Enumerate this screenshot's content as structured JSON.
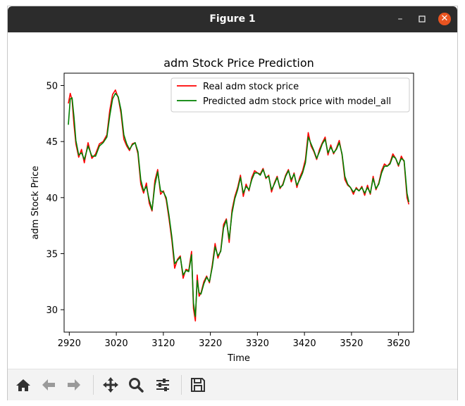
{
  "window": {
    "title": "Figure 1"
  },
  "toolbar": {
    "buttons": [
      {
        "name": "home-icon"
      },
      {
        "name": "back-arrow-icon"
      },
      {
        "name": "forward-arrow-icon"
      },
      {
        "name": "pan-move-icon"
      },
      {
        "name": "zoom-magnifier-icon"
      },
      {
        "name": "configure-subplots-icon"
      },
      {
        "name": "save-disk-icon"
      }
    ]
  },
  "chart_data": {
    "type": "line",
    "title": "adm Stock Price Prediction",
    "xlabel": "Time",
    "ylabel": "adm Stock Price",
    "xlim": [
      2909,
      3652
    ],
    "ylim": [
      28,
      51.1
    ],
    "xticks": [
      2920,
      3020,
      3120,
      3220,
      3320,
      3420,
      3520,
      3620
    ],
    "yticks": [
      30,
      35,
      40,
      45,
      50
    ],
    "grid": false,
    "legend_position": "top-right",
    "series": [
      {
        "name": "Real adm stock price",
        "color": "#ff0000",
        "x": [
          2918,
          2922,
          2926,
          2930,
          2934,
          2940,
          2946,
          2952,
          2960,
          2968,
          2976,
          2984,
          2992,
          3000,
          3006,
          3012,
          3018,
          3024,
          3030,
          3036,
          3042,
          3048,
          3054,
          3060,
          3066,
          3072,
          3078,
          3084,
          3090,
          3096,
          3102,
          3108,
          3114,
          3120,
          3126,
          3132,
          3138,
          3144,
          3150,
          3156,
          3162,
          3168,
          3174,
          3180,
          3184,
          3188,
          3192,
          3196,
          3200,
          3206,
          3212,
          3218,
          3224,
          3230,
          3236,
          3242,
          3248,
          3254,
          3260,
          3266,
          3272,
          3278,
          3284,
          3290,
          3296,
          3302,
          3308,
          3314,
          3320,
          3326,
          3332,
          3338,
          3344,
          3350,
          3356,
          3362,
          3368,
          3374,
          3380,
          3386,
          3392,
          3398,
          3404,
          3410,
          3416,
          3422,
          3428,
          3434,
          3440,
          3446,
          3452,
          3458,
          3464,
          3470,
          3476,
          3482,
          3488,
          3494,
          3500,
          3506,
          3512,
          3518,
          3524,
          3530,
          3536,
          3542,
          3548,
          3554,
          3560,
          3566,
          3572,
          3578,
          3584,
          3590,
          3596,
          3602,
          3608,
          3614,
          3620,
          3626,
          3632,
          3638,
          3642
        ],
        "values": [
          48.4,
          49.3,
          48.7,
          46.5,
          44.8,
          43.6,
          44.3,
          43.1,
          44.9,
          43.5,
          43.9,
          44.8,
          45.0,
          45.6,
          47.8,
          49.2,
          49.6,
          48.9,
          47.5,
          45.2,
          44.6,
          44.2,
          44.8,
          44.9,
          43.9,
          41.2,
          40.4,
          41.3,
          39.5,
          38.8,
          41.5,
          42.5,
          40.3,
          40.6,
          39.8,
          38.1,
          36.2,
          33.7,
          34.5,
          34.8,
          32.8,
          33.6,
          33.5,
          35.2,
          30.1,
          29.0,
          33.1,
          31.2,
          31.5,
          32.5,
          33.0,
          32.4,
          34.0,
          35.9,
          34.6,
          35.3,
          37.6,
          38.1,
          36.0,
          38.9,
          40.1,
          40.9,
          42.0,
          40.1,
          41.2,
          40.6,
          41.8,
          42.4,
          42.2,
          42.1,
          42.6,
          41.7,
          42.0,
          40.5,
          41.3,
          41.9,
          40.8,
          41.2,
          42.0,
          42.5,
          41.4,
          42.2,
          40.9,
          41.8,
          42.4,
          43.4,
          45.8,
          44.6,
          44.1,
          43.4,
          44.3,
          44.9,
          45.4,
          43.8,
          44.7,
          43.9,
          44.4,
          45.1,
          43.8,
          41.6,
          41.1,
          40.9,
          40.3,
          40.9,
          40.6,
          41.0,
          40.2,
          41.1,
          40.3,
          41.9,
          40.7,
          41.3,
          42.4,
          43.0,
          42.8,
          43.1,
          43.9,
          43.5,
          42.8,
          43.7,
          43.2,
          40.0,
          39.4
        ]
      },
      {
        "name": "Predicted adm stock price with model_all",
        "color": "#008000",
        "x": [
          2918,
          2922,
          2926,
          2930,
          2934,
          2940,
          2946,
          2952,
          2960,
          2968,
          2976,
          2984,
          2992,
          3000,
          3006,
          3012,
          3018,
          3024,
          3030,
          3036,
          3042,
          3048,
          3054,
          3060,
          3066,
          3072,
          3078,
          3084,
          3090,
          3096,
          3102,
          3108,
          3114,
          3120,
          3126,
          3132,
          3138,
          3144,
          3150,
          3156,
          3162,
          3168,
          3174,
          3180,
          3184,
          3188,
          3192,
          3196,
          3200,
          3206,
          3212,
          3218,
          3224,
          3230,
          3236,
          3242,
          3248,
          3254,
          3260,
          3266,
          3272,
          3278,
          3284,
          3290,
          3296,
          3302,
          3308,
          3314,
          3320,
          3326,
          3332,
          3338,
          3344,
          3350,
          3356,
          3362,
          3368,
          3374,
          3380,
          3386,
          3392,
          3398,
          3404,
          3410,
          3416,
          3422,
          3428,
          3434,
          3440,
          3446,
          3452,
          3458,
          3464,
          3470,
          3476,
          3482,
          3488,
          3494,
          3500,
          3506,
          3512,
          3518,
          3524,
          3530,
          3536,
          3542,
          3548,
          3554,
          3560,
          3566,
          3572,
          3578,
          3584,
          3590,
          3596,
          3602,
          3608,
          3614,
          3620,
          3626,
          3632,
          3638,
          3642
        ],
        "values": [
          46.5,
          48.8,
          48.9,
          47.2,
          45.1,
          43.8,
          44.0,
          43.4,
          44.6,
          43.7,
          43.7,
          44.6,
          44.9,
          45.4,
          47.3,
          48.8,
          49.3,
          49.0,
          47.8,
          45.6,
          44.8,
          44.3,
          44.7,
          44.9,
          44.1,
          41.6,
          40.6,
          41.0,
          39.8,
          38.9,
          41.1,
          42.3,
          40.6,
          40.5,
          40.0,
          38.4,
          36.5,
          34.1,
          34.4,
          34.7,
          33.1,
          33.5,
          33.4,
          34.9,
          30.6,
          29.4,
          32.6,
          31.5,
          31.4,
          32.3,
          32.9,
          32.5,
          33.8,
          35.6,
          34.8,
          35.2,
          37.3,
          38.0,
          36.3,
          38.6,
          39.9,
          40.7,
          41.8,
          40.4,
          41.0,
          40.7,
          41.6,
          42.2,
          42.2,
          42.0,
          42.5,
          41.8,
          41.9,
          40.7,
          41.2,
          41.8,
          40.9,
          41.1,
          41.9,
          42.4,
          41.6,
          42.1,
          41.1,
          41.6,
          42.2,
          43.1,
          45.4,
          44.8,
          44.2,
          43.5,
          44.1,
          44.8,
          45.2,
          44.0,
          44.5,
          44.0,
          44.3,
          44.9,
          43.9,
          41.9,
          41.2,
          40.9,
          40.5,
          40.8,
          40.6,
          40.9,
          40.4,
          40.9,
          40.4,
          41.7,
          40.8,
          41.2,
          42.2,
          42.8,
          42.8,
          43.0,
          43.7,
          43.5,
          42.9,
          43.5,
          43.3,
          40.4,
          39.6
        ]
      }
    ]
  }
}
